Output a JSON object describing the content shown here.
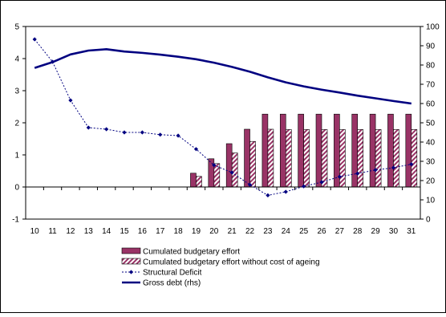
{
  "chart_data": {
    "type": "bar",
    "categories": [
      "10",
      "11",
      "12",
      "13",
      "14",
      "15",
      "16",
      "17",
      "18",
      "19",
      "20",
      "21",
      "22",
      "23",
      "24",
      "25",
      "26",
      "27",
      "28",
      "29",
      "30",
      "31"
    ],
    "ylim": [
      -1,
      5
    ],
    "y_ticks": [
      "-1",
      "0",
      "1",
      "2",
      "3",
      "4",
      "5"
    ],
    "y2lim": [
      0,
      100
    ],
    "y2_ticks": [
      "0",
      "10",
      "20",
      "30",
      "40",
      "50",
      "60",
      "70",
      "80",
      "90",
      "100"
    ],
    "grid": false,
    "legend_position": "bottom",
    "series": [
      {
        "name": "Cumulated budgetary effort",
        "type": "bar",
        "axis": "left",
        "color": "#993366",
        "values": [
          null,
          null,
          null,
          null,
          null,
          null,
          null,
          null,
          null,
          0.43,
          0.88,
          1.35,
          1.8,
          2.27,
          2.27,
          2.27,
          2.27,
          2.27,
          2.27,
          2.27,
          2.27,
          2.27
        ]
      },
      {
        "name": "Cumulated budgetary effort without cost of ageing",
        "type": "bar",
        "axis": "left",
        "color": "#993366",
        "pattern": "hatched",
        "values": [
          null,
          null,
          null,
          null,
          null,
          null,
          null,
          null,
          null,
          0.33,
          0.73,
          1.06,
          1.42,
          1.8,
          1.79,
          1.79,
          1.79,
          1.79,
          1.79,
          1.79,
          1.79,
          1.79
        ]
      },
      {
        "name": "Structural Deficit",
        "type": "line",
        "axis": "left",
        "color": "#000080",
        "style": "dashed-with-diamonds",
        "values": [
          4.6,
          3.9,
          2.7,
          1.85,
          1.8,
          1.7,
          1.7,
          1.63,
          1.6,
          1.18,
          0.68,
          0.45,
          0.07,
          -0.26,
          -0.15,
          0.02,
          0.15,
          0.32,
          0.42,
          0.53,
          0.6,
          0.71
        ]
      },
      {
        "name": "Gross debt (rhs)",
        "type": "line",
        "axis": "right",
        "color": "#000080",
        "values": [
          78.5,
          81.5,
          85.5,
          87.5,
          88.2,
          87,
          86.3,
          85.4,
          84.3,
          83,
          81.2,
          79,
          76.5,
          73.6,
          71,
          68.9,
          67.2,
          65.7,
          64.1,
          62.7,
          61.3,
          60
        ]
      }
    ]
  }
}
